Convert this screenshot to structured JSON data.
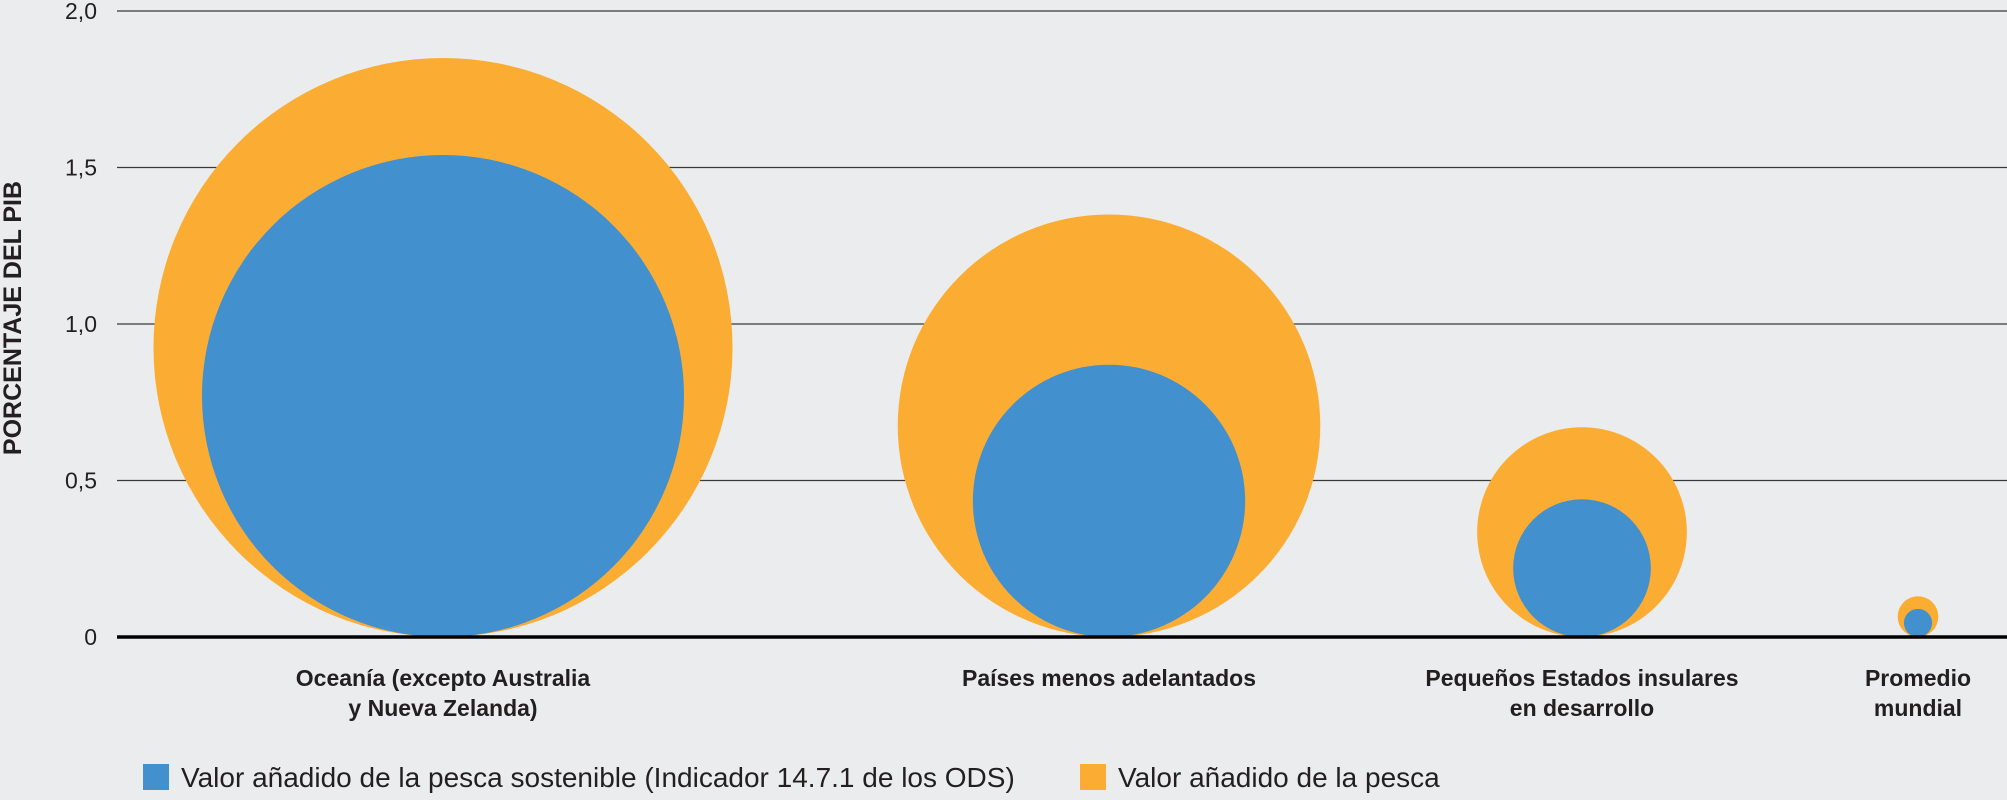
{
  "chart_data": {
    "type": "bubble",
    "ylabel": "PORCENTAJE DEL PIB",
    "ylim": [
      0,
      2.0
    ],
    "yticks": [
      "0",
      "0,5",
      "1,0",
      "1,5",
      "2,0"
    ],
    "ytick_values": [
      0,
      0.5,
      1.0,
      1.5,
      2.0
    ],
    "grid": true,
    "legend_position": "bottom-left",
    "categories": [
      {
        "lines": [
          "Oceanía (excepto Australia",
          "y Nueva Zelanda)"
        ]
      },
      {
        "lines": [
          "Países menos adelantados"
        ]
      },
      {
        "lines": [
          "Pequeños Estados insulares",
          "en desarrollo"
        ]
      },
      {
        "lines": [
          "Promedio",
          "mundial"
        ]
      }
    ],
    "series": [
      {
        "name": "Valor añadido de la pesca",
        "color": "#fbad33",
        "values": [
          1.85,
          1.35,
          0.67,
          0.13
        ]
      },
      {
        "name": "Valor añadido de la pesca sostenible (Indicador 14.7.1 de los ODS)",
        "color": "#4390ce",
        "values": [
          1.54,
          0.87,
          0.44,
          0.09
        ]
      }
    ]
  },
  "legend": [
    {
      "label": "Valor añadido de la pesca sostenible (Indicador 14.7.1 de los ODS)",
      "color": "#4390ce",
      "icon": "blue-square-icon"
    },
    {
      "label": "Valor añadido de la pesca",
      "color": "#fbad33",
      "icon": "orange-square-icon"
    }
  ]
}
